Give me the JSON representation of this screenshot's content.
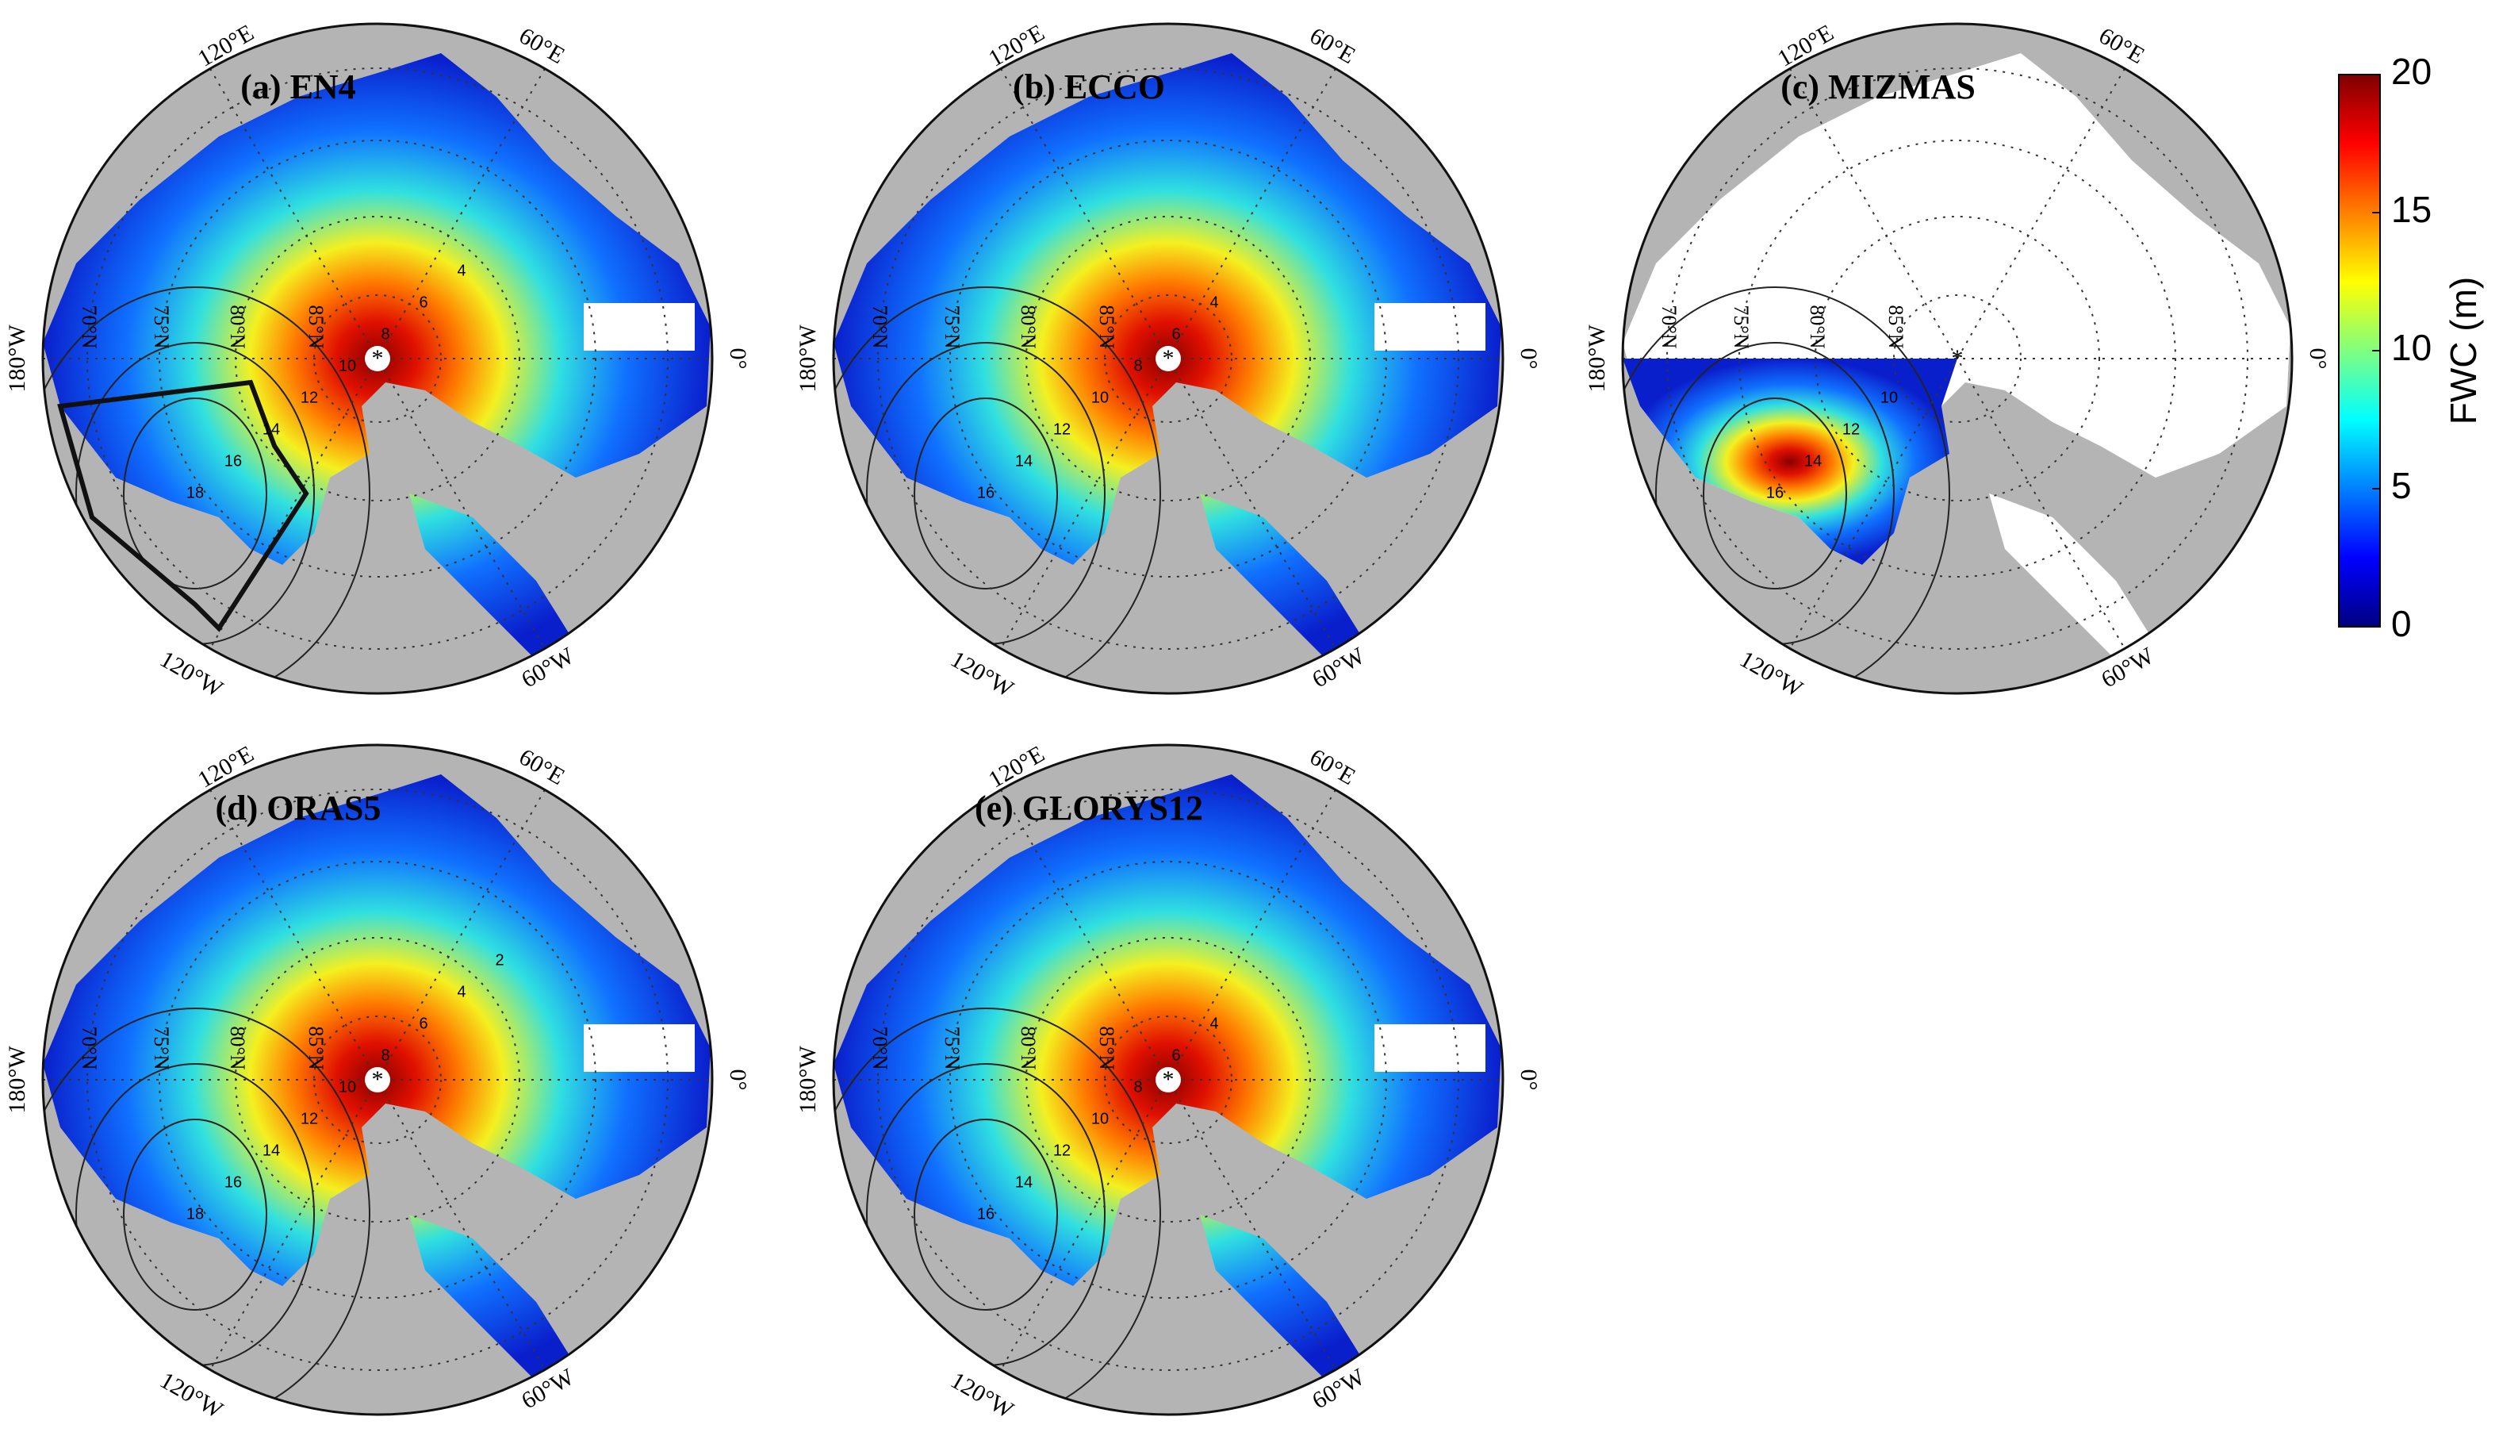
{
  "panels": [
    {
      "title": "(a) EN4",
      "contour_labels": [
        18,
        16,
        14,
        12,
        10,
        8,
        6,
        4
      ]
    },
    {
      "title": "(b) ECCO",
      "contour_labels": [
        16,
        14,
        12,
        10,
        8,
        6,
        4
      ]
    },
    {
      "title": "(c) MIZMAS",
      "contour_labels": [
        16,
        14,
        12,
        10
      ]
    },
    {
      "title": "(d) ORAS5",
      "contour_labels": [
        18,
        16,
        14,
        12,
        10,
        8,
        6,
        4,
        2
      ]
    },
    {
      "title": "(e) GLORYS12",
      "contour_labels": [
        16,
        14,
        12,
        10,
        8,
        6,
        4
      ]
    }
  ],
  "longitude_labels": [
    "120°E",
    "60°E",
    "180°W",
    "0°",
    "120°W",
    "60°W"
  ],
  "latitude_labels": [
    "70°N",
    "75°N",
    "80°N",
    "85°N"
  ],
  "colorbar": {
    "label": "FWC (m)",
    "range": [
      0,
      20
    ],
    "ticks": [
      0,
      5,
      10,
      15,
      20
    ]
  }
}
